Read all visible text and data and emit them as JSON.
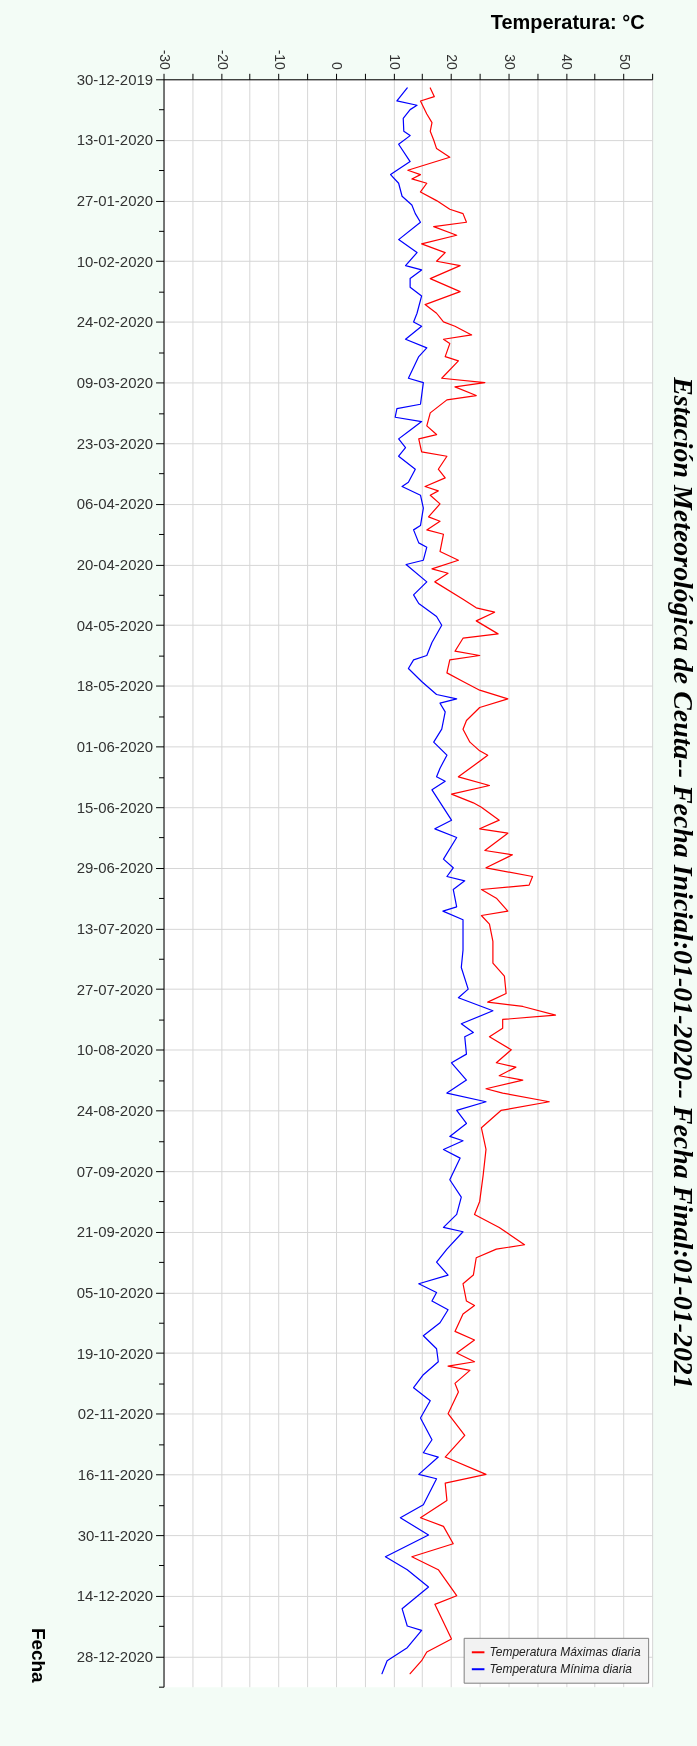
{
  "chart_data": {
    "type": "line",
    "orientation": "horizontal",
    "title": "Estación Meteorológica de Ceuta-- Fecha Inicial:01-01-2020-- Fecha Final:01-01-2021",
    "xlabel": "Temperatura: °C",
    "ylabel": "Fecha",
    "xlim": [
      -30,
      55
    ],
    "xticks": [
      -30,
      {
        "value": -25,
        "label": null
      },
      -20,
      {
        "value": -15,
        "label": null
      },
      -10,
      {
        "value": -5,
        "label": null
      },
      0,
      {
        "value": 5,
        "label": null
      },
      10,
      {
        "value": 15,
        "label": null
      },
      20,
      {
        "value": 25,
        "label": null
      },
      30,
      {
        "value": 35,
        "label": null
      },
      40,
      {
        "value": 45,
        "label": null
      },
      50,
      {
        "value": 55,
        "label": null
      }
    ],
    "ylim": [
      "2021-01-04",
      "2019-12-30"
    ],
    "yticks": [
      {
        "value": "2019-12-30",
        "label": "30-12-2019"
      },
      {
        "value": "2020-01-06",
        "label": null
      },
      {
        "value": "2020-01-13",
        "label": "13-01-2020"
      },
      {
        "value": "2020-01-20",
        "label": null
      },
      {
        "value": "2020-01-27",
        "label": "27-01-2020"
      },
      {
        "value": "2020-02-03",
        "label": null
      },
      {
        "value": "2020-02-10",
        "label": "10-02-2020"
      },
      {
        "value": "2020-02-17",
        "label": null
      },
      {
        "value": "2020-02-24",
        "label": "24-02-2020"
      },
      {
        "value": "2020-03-02",
        "label": null
      },
      {
        "value": "2020-03-09",
        "label": "09-03-2020"
      },
      {
        "value": "2020-03-16",
        "label": null
      },
      {
        "value": "2020-03-23",
        "label": "23-03-2020"
      },
      {
        "value": "2020-03-30",
        "label": null
      },
      {
        "value": "2020-04-06",
        "label": "06-04-2020"
      },
      {
        "value": "2020-04-13",
        "label": null
      },
      {
        "value": "2020-04-20",
        "label": "20-04-2020"
      },
      {
        "value": "2020-04-27",
        "label": null
      },
      {
        "value": "2020-05-04",
        "label": "04-05-2020"
      },
      {
        "value": "2020-05-11",
        "label": null
      },
      {
        "value": "2020-05-18",
        "label": "18-05-2020"
      },
      {
        "value": "2020-05-25",
        "label": null
      },
      {
        "value": "2020-06-01",
        "label": "01-06-2020"
      },
      {
        "value": "2020-06-08",
        "label": null
      },
      {
        "value": "2020-06-15",
        "label": "15-06-2020"
      },
      {
        "value": "2020-06-22",
        "label": null
      },
      {
        "value": "2020-06-29",
        "label": "29-06-2020"
      },
      {
        "value": "2020-07-06",
        "label": null
      },
      {
        "value": "2020-07-13",
        "label": "13-07-2020"
      },
      {
        "value": "2020-07-20",
        "label": null
      },
      {
        "value": "2020-07-27",
        "label": "27-07-2020"
      },
      {
        "value": "2020-08-03",
        "label": null
      },
      {
        "value": "2020-08-10",
        "label": "10-08-2020"
      },
      {
        "value": "2020-08-17",
        "label": null
      },
      {
        "value": "2020-08-24",
        "label": "24-08-2020"
      },
      {
        "value": "2020-08-31",
        "label": null
      },
      {
        "value": "2020-09-07",
        "label": "07-09-2020"
      },
      {
        "value": "2020-09-14",
        "label": null
      },
      {
        "value": "2020-09-21",
        "label": "21-09-2020"
      },
      {
        "value": "2020-09-28",
        "label": null
      },
      {
        "value": "2020-10-05",
        "label": "05-10-2020"
      },
      {
        "value": "2020-10-12",
        "label": null
      },
      {
        "value": "2020-10-19",
        "label": "19-10-2020"
      },
      {
        "value": "2020-10-26",
        "label": null
      },
      {
        "value": "2020-11-02",
        "label": "02-11-2020"
      },
      {
        "value": "2020-11-09",
        "label": null
      },
      {
        "value": "2020-11-16",
        "label": "16-11-2020"
      },
      {
        "value": "2020-11-23",
        "label": null
      },
      {
        "value": "2020-11-30",
        "label": "30-11-2020"
      },
      {
        "value": "2020-12-07",
        "label": null
      },
      {
        "value": "2020-12-14",
        "label": "14-12-2020"
      },
      {
        "value": "2020-12-21",
        "label": null
      },
      {
        "value": "2020-12-28",
        "label": "28-12-2020"
      },
      {
        "value": "2021-01-04",
        "label": null
      }
    ],
    "grid": true,
    "legend": "bottom right",
    "series": [
      {
        "name": "Temperatura Máximas diaria",
        "color": "#ff0000",
        "x": [
          "2020-01-01",
          "2020-01-03",
          "2020-01-04",
          "2020-01-07",
          "2020-01-09",
          "2020-01-11",
          "2020-01-13",
          "2020-01-15",
          "2020-01-17",
          "2020-01-20",
          "2020-01-21",
          "2020-01-22",
          "2020-01-23",
          "2020-01-25",
          "2020-01-27",
          "2020-01-29",
          "2020-01-30",
          "2020-02-01",
          "2020-02-02",
          "2020-02-04",
          "2020-02-06",
          "2020-02-08",
          "2020-02-10",
          "2020-02-11",
          "2020-02-14",
          "2020-02-17",
          "2020-02-20",
          "2020-02-22",
          "2020-02-24",
          "2020-02-25",
          "2020-02-27",
          "2020-02-28",
          "2020-02-29",
          "2020-03-03",
          "2020-03-04",
          "2020-03-08",
          "2020-03-09",
          "2020-03-10",
          "2020-03-12",
          "2020-03-13",
          "2020-03-16",
          "2020-03-19",
          "2020-03-21",
          "2020-03-22",
          "2020-03-25",
          "2020-03-26",
          "2020-03-29",
          "2020-03-31",
          "2020-04-02",
          "2020-04-03",
          "2020-04-04",
          "2020-04-06",
          "2020-04-09",
          "2020-04-10",
          "2020-04-12",
          "2020-04-13",
          "2020-04-17",
          "2020-04-19",
          "2020-04-21",
          "2020-04-22",
          "2020-04-24",
          "2020-04-28",
          "2020-04-30",
          "2020-05-01",
          "2020-05-03",
          "2020-05-06",
          "2020-05-07",
          "2020-05-10",
          "2020-05-11",
          "2020-05-12",
          "2020-05-15",
          "2020-05-17",
          "2020-05-19",
          "2020-05-21",
          "2020-05-23",
          "2020-05-26",
          "2020-05-28",
          "2020-05-31",
          "2020-06-02",
          "2020-06-03",
          "2020-06-05",
          "2020-06-08",
          "2020-06-10",
          "2020-06-12",
          "2020-06-14",
          "2020-06-15",
          "2020-06-18",
          "2020-06-20",
          "2020-06-21",
          "2020-06-25",
          "2020-06-26",
          "2020-06-29",
          "2020-07-01",
          "2020-07-03",
          "2020-07-04",
          "2020-07-06",
          "2020-07-09",
          "2020-07-10",
          "2020-07-12",
          "2020-07-16",
          "2020-07-21",
          "2020-07-24",
          "2020-07-28",
          "2020-07-30",
          "2020-07-31",
          "2020-08-02",
          "2020-08-03",
          "2020-08-05",
          "2020-08-07",
          "2020-08-10",
          "2020-08-13",
          "2020-08-14",
          "2020-08-16",
          "2020-08-17",
          "2020-08-19",
          "2020-08-20",
          "2020-08-22",
          "2020-08-24",
          "2020-08-28",
          "2020-09-02",
          "2020-09-08",
          "2020-09-14",
          "2020-09-17",
          "2020-09-20",
          "2020-09-24",
          "2020-09-25",
          "2020-09-27",
          "2020-10-01",
          "2020-10-03",
          "2020-10-07",
          "2020-10-08",
          "2020-10-10",
          "2020-10-14",
          "2020-10-16",
          "2020-10-19",
          "2020-10-21",
          "2020-10-22",
          "2020-10-23",
          "2020-10-26",
          "2020-10-28",
          "2020-11-02",
          "2020-11-07",
          "2020-11-12",
          "2020-11-16",
          "2020-11-18",
          "2020-11-22",
          "2020-11-26",
          "2020-11-28",
          "2020-12-02",
          "2020-12-05",
          "2020-12-08",
          "2020-12-14",
          "2020-12-16",
          "2020-12-24",
          "2020-12-27",
          "2020-12-29",
          "2021-01-01"
        ],
        "values": [
          16.4,
          17.1,
          14.7,
          15.8,
          16.7,
          16.4,
          17.0,
          17.5,
          19.8,
          12.5,
          14.7,
          13.2,
          15.8,
          14.7,
          17.5,
          19.8,
          22.1,
          22.7,
          17.0,
          21.0,
          14.9,
          19.0,
          17.5,
          21.6,
          16.4,
          21.6,
          15.5,
          17.5,
          18.7,
          20.7,
          23.6,
          18.7,
          19.8,
          19.0,
          21.3,
          18.4,
          25.9,
          20.7,
          24.4,
          19.3,
          16.4,
          15.8,
          17.5,
          14.4,
          14.9,
          19.3,
          17.8,
          19.0,
          15.5,
          17.8,
          16.4,
          18.1,
          16.1,
          18.1,
          15.8,
          18.7,
          18.1,
          21.3,
          16.7,
          19.5,
          17.2,
          22.1,
          24.4,
          27.6,
          24.4,
          28.2,
          22.1,
          20.7,
          25.0,
          19.8,
          19.3,
          22.1,
          25.0,
          29.9,
          25.0,
          22.7,
          22.1,
          23.3,
          25.0,
          26.4,
          24.4,
          21.3,
          26.7,
          20.1,
          23.9,
          25.3,
          28.4,
          25.0,
          29.9,
          25.9,
          30.7,
          26.1,
          34.2,
          33.6,
          25.3,
          27.9,
          29.9,
          25.3,
          26.7,
          27.3,
          27.3,
          29.3,
          29.6,
          26.4,
          32.5,
          38.2,
          29.0,
          29.0,
          26.7,
          30.5,
          27.9,
          31.3,
          28.4,
          32.5,
          26.1,
          29.0,
          37.1,
          28.7,
          25.3,
          26.1,
          25.6,
          25.0,
          24.1,
          28.4,
          32.8,
          27.9,
          24.4,
          23.9,
          22.1,
          22.7,
          24.1,
          22.1,
          20.7,
          24.1,
          21.0,
          24.1,
          19.5,
          23.3,
          20.7,
          21.3,
          19.5,
          22.4,
          19.0,
          26.1,
          19.0,
          19.3,
          14.7,
          18.7,
          20.4,
          13.2,
          17.8,
          21.0,
          17.2,
          20.1,
          15.8,
          14.9,
          12.9
        ]
      },
      {
        "name": "Temperatura Mínima diaria",
        "color": "#0000ff",
        "x": [
          "2020-01-01",
          "2020-01-04",
          "2020-01-05",
          "2020-01-06",
          "2020-01-08",
          "2020-01-11",
          "2020-01-12",
          "2020-01-14",
          "2020-01-18",
          "2020-01-21",
          "2020-01-23",
          "2020-01-26",
          "2020-01-28",
          "2020-01-30",
          "2020-02-01",
          "2020-02-05",
          "2020-02-08",
          "2020-02-11",
          "2020-02-12",
          "2020-02-14",
          "2020-02-16",
          "2020-02-18",
          "2020-02-22",
          "2020-02-24",
          "2020-02-25",
          "2020-02-28",
          "2020-03-01",
          "2020-03-03",
          "2020-03-08",
          "2020-03-09",
          "2020-03-14",
          "2020-03-15",
          "2020-03-17",
          "2020-03-18",
          "2020-03-20",
          "2020-03-22",
          "2020-03-24",
          "2020-03-26",
          "2020-03-29",
          "2020-04-01",
          "2020-04-02",
          "2020-04-04",
          "2020-04-07",
          "2020-04-11",
          "2020-04-12",
          "2020-04-15",
          "2020-04-16",
          "2020-04-19",
          "2020-04-20",
          "2020-04-24",
          "2020-04-27",
          "2020-04-29",
          "2020-05-02",
          "2020-05-04",
          "2020-05-08",
          "2020-05-11",
          "2020-05-12",
          "2020-05-14",
          "2020-05-17",
          "2020-05-20",
          "2020-05-21",
          "2020-05-22",
          "2020-05-24",
          "2020-05-28",
          "2020-05-31",
          "2020-06-03",
          "2020-06-06",
          "2020-06-08",
          "2020-06-09",
          "2020-06-11",
          "2020-06-18",
          "2020-06-20",
          "2020-06-22",
          "2020-06-27",
          "2020-06-29",
          "2020-07-01",
          "2020-07-02",
          "2020-07-04",
          "2020-07-08",
          "2020-07-09",
          "2020-07-11",
          "2020-07-18",
          "2020-07-22",
          "2020-07-27",
          "2020-07-29",
          "2020-08-01",
          "2020-08-04",
          "2020-08-06",
          "2020-08-07",
          "2020-08-11",
          "2020-08-13",
          "2020-08-17",
          "2020-08-20",
          "2020-08-22",
          "2020-08-24",
          "2020-08-27",
          "2020-08-30",
          "2020-08-31",
          "2020-09-02",
          "2020-09-04",
          "2020-09-09",
          "2020-09-13",
          "2020-09-17",
          "2020-09-20",
          "2020-09-21",
          "2020-09-25",
          "2020-09-28",
          "2020-10-01",
          "2020-10-03",
          "2020-10-05",
          "2020-10-07",
          "2020-10-09",
          "2020-10-12",
          "2020-10-15",
          "2020-10-18",
          "2020-10-21",
          "2020-10-24",
          "2020-10-27",
          "2020-10-30",
          "2020-11-03",
          "2020-11-08",
          "2020-11-11",
          "2020-11-12",
          "2020-11-16",
          "2020-11-17",
          "2020-11-23",
          "2020-11-26",
          "2020-11-30",
          "2020-12-05",
          "2020-12-08",
          "2020-12-12",
          "2020-12-17",
          "2020-12-21",
          "2020-12-22",
          "2020-12-26",
          "2020-12-29",
          "2021-01-01"
        ],
        "values": [
          12.4,
          10.6,
          14.1,
          12.9,
          11.7,
          11.8,
          12.9,
          10.9,
          12.9,
          9.5,
          10.9,
          11.5,
          13.2,
          13.8,
          14.7,
          10.9,
          14.1,
          12.1,
          14.9,
          12.9,
          12.9,
          14.9,
          14.1,
          13.5,
          14.9,
          12.1,
          15.8,
          14.4,
          12.6,
          15.2,
          14.7,
          10.6,
          10.3,
          14.9,
          12.9,
          10.9,
          12.1,
          10.9,
          13.8,
          12.6,
          11.5,
          14.7,
          15.2,
          14.7,
          13.5,
          14.4,
          15.8,
          15.2,
          12.2,
          15.8,
          13.5,
          14.4,
          17.5,
          18.4,
          16.7,
          15.8,
          13.5,
          12.6,
          14.9,
          17.5,
          21.0,
          18.1,
          19.0,
          18.4,
          17.0,
          19.3,
          18.1,
          17.5,
          19.0,
          16.7,
          20.1,
          17.2,
          21.0,
          18.7,
          20.4,
          19.3,
          22.4,
          20.4,
          21.0,
          18.6,
          22.1,
          22.1,
          21.8,
          23.0,
          21.3,
          27.3,
          21.8,
          23.9,
          22.4,
          22.7,
          20.1,
          22.7,
          19.3,
          26.1,
          21.0,
          22.7,
          19.8,
          22.1,
          18.7,
          21.6,
          19.8,
          21.8,
          21.0,
          18.7,
          22.1,
          19.3,
          17.5,
          19.5,
          14.4,
          17.5,
          16.7,
          19.5,
          18.1,
          15.2,
          17.5,
          17.8,
          15.2,
          13.5,
          16.4,
          14.7,
          16.7,
          15.2,
          17.8,
          14.4,
          17.5,
          15.2,
          11.2,
          16.1,
          8.6,
          12.4,
          16.1,
          11.5,
          12.4,
          14.9,
          12.4,
          8.9,
          8.0
        ]
      }
    ]
  }
}
